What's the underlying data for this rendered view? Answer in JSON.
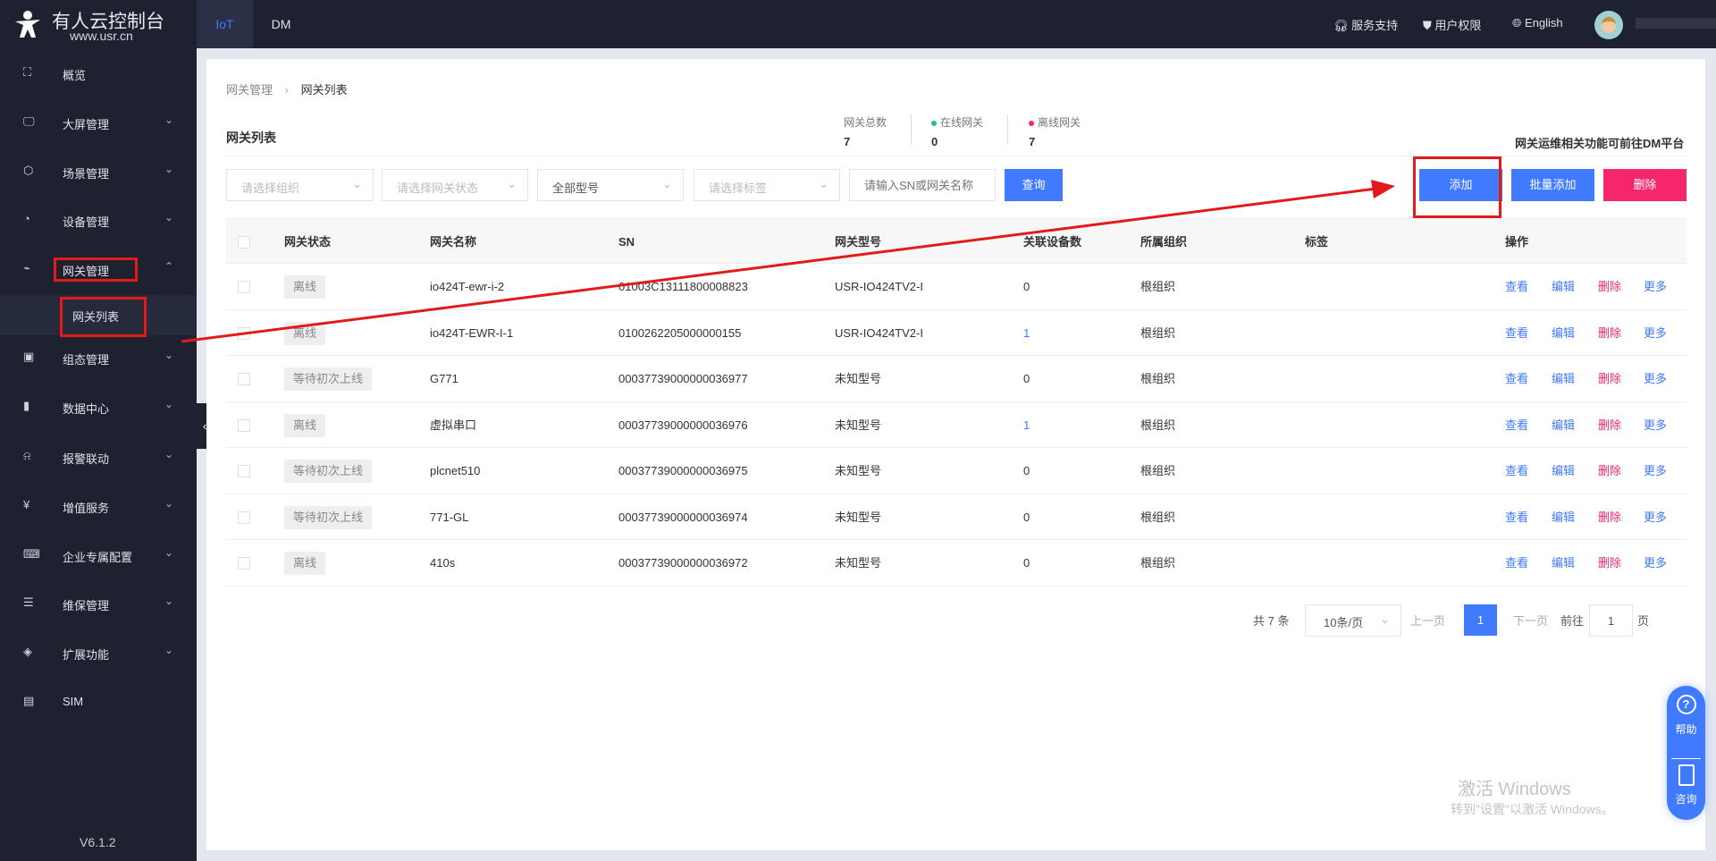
{
  "brand": {
    "title": "有人云控制台",
    "url": "www.usr.cn",
    "version": "V6.1.2"
  },
  "top_tabs": [
    {
      "label": "IoT",
      "active": true
    },
    {
      "label": "DM",
      "active": false
    }
  ],
  "top_right": {
    "support": "服务支持",
    "permission": "用户权限",
    "language": "English"
  },
  "sidebar": {
    "items": [
      {
        "label": "概览",
        "icon": "scan-icon",
        "expand": ""
      },
      {
        "label": "大屏管理",
        "icon": "monitor-icon",
        "expand": "⌄"
      },
      {
        "label": "场景管理",
        "icon": "cube-icon",
        "expand": "⌄"
      },
      {
        "label": "设备管理",
        "icon": "pie-icon",
        "expand": "⌄"
      },
      {
        "label": "网关管理",
        "icon": "gateway-icon",
        "expand": "⌃"
      },
      {
        "label": "组态管理",
        "icon": "image-icon",
        "expand": "⌄"
      },
      {
        "label": "数据中心",
        "icon": "bar-chart-icon",
        "expand": "⌄"
      },
      {
        "label": "报警联动",
        "icon": "alarm-icon",
        "expand": "⌄"
      },
      {
        "label": "增值服务",
        "icon": "yen-icon",
        "expand": "⌄"
      },
      {
        "label": "企业专属配置",
        "icon": "code-screen-icon",
        "expand": "⌄"
      },
      {
        "label": "维保管理",
        "icon": "maintenance-icon",
        "expand": "⌄"
      },
      {
        "label": "扩展功能",
        "icon": "layers-icon",
        "expand": "⌄"
      },
      {
        "label": "SIM",
        "icon": "sim-icon",
        "expand": ""
      }
    ],
    "sub_item": "网关列表"
  },
  "breadcrumb": [
    "网关管理",
    "网关列表"
  ],
  "page_title": "网关列表",
  "stats": [
    {
      "label": "网关总数",
      "value": "7",
      "dot": ""
    },
    {
      "label": "在线网关",
      "value": "0",
      "dot": "#1fc28f"
    },
    {
      "label": "离线网关",
      "value": "7",
      "dot": "#f5266b"
    }
  ],
  "dm_note": "网关运维相关功能可前往DM平台",
  "filters": {
    "org": "请选择组织",
    "status": "请选择网关状态",
    "model": "全部型号",
    "tag": "请选择标签",
    "search": "请输入SN或网关名称",
    "query": "查询"
  },
  "actions": {
    "add": "添加",
    "batch_add": "批量添加",
    "delete": "删除"
  },
  "colors": {
    "primary": "#3f7aff",
    "danger": "#f5266b",
    "sidebar": "#1d2130"
  },
  "table": {
    "headers": [
      "网关状态",
      "网关名称",
      "SN",
      "网关型号",
      "关联设备数",
      "所属组织",
      "标签",
      "操作"
    ],
    "row_actions": [
      "查看",
      "编辑",
      "删除",
      "更多"
    ],
    "rows": [
      {
        "status": "离线",
        "name": "io424T-ewr-i-2",
        "sn": "01003C13111800008823",
        "model": "USR-IO424TV2-I",
        "count": "0",
        "org": "根组织",
        "tag": ""
      },
      {
        "status": "离线",
        "name": "io424T-EWR-I-1",
        "sn": "0100262205000000155",
        "model": "USR-IO424TV2-I",
        "count": "1",
        "org": "根组织",
        "tag": ""
      },
      {
        "status": "等待初次上线",
        "name": "G771",
        "sn": "00037739000000036977",
        "model": "未知型号",
        "count": "0",
        "org": "根组织",
        "tag": ""
      },
      {
        "status": "离线",
        "name": "虚拟串口",
        "sn": "00037739000000036976",
        "model": "未知型号",
        "count": "1",
        "org": "根组织",
        "tag": ""
      },
      {
        "status": "等待初次上线",
        "name": "plcnet510",
        "sn": "00037739000000036975",
        "model": "未知型号",
        "count": "0",
        "org": "根组织",
        "tag": ""
      },
      {
        "status": "等待初次上线",
        "name": "771-GL",
        "sn": "00037739000000036974",
        "model": "未知型号",
        "count": "0",
        "org": "根组织",
        "tag": ""
      },
      {
        "status": "离线",
        "name": "410s",
        "sn": "00037739000000036972",
        "model": "未知型号",
        "count": "0",
        "org": "根组织",
        "tag": ""
      }
    ]
  },
  "pagination": {
    "total": "共 7 条",
    "page_size": "10条/页",
    "prev": "上一页",
    "current": "1",
    "next": "下一页",
    "goto": "前往",
    "goto_value": "1",
    "page_unit": "页"
  },
  "float": {
    "help": "帮助",
    "consult": "咨询"
  },
  "watermark": {
    "line1": "激活 Windows",
    "line2": "转到\"设置\"以激活 Windows。"
  }
}
